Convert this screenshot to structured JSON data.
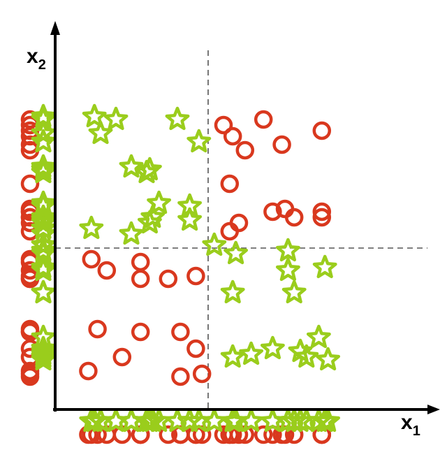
{
  "chart_data": {
    "type": "scatter",
    "xlabel": {
      "base": "x",
      "sub": "1"
    },
    "ylabel": {
      "base": "x",
      "sub": "2"
    },
    "xlim": [
      0,
      10
    ],
    "ylim": [
      0,
      10
    ],
    "dividers": {
      "x": 4.5,
      "y": 4.5
    },
    "colors": {
      "circle": "#d9381e",
      "star": "#9acd1c",
      "axis": "#000000",
      "divider": "#555555"
    },
    "series": [
      {
        "marker": "circle",
        "points": [
          [
            5.0,
            8.9
          ],
          [
            5.3,
            8.5
          ],
          [
            5.7,
            8.0
          ],
          [
            6.3,
            9.1
          ],
          [
            6.9,
            8.2
          ],
          [
            8.2,
            8.7
          ],
          [
            5.2,
            6.8
          ],
          [
            6.6,
            5.8
          ],
          [
            7.0,
            5.9
          ],
          [
            7.3,
            5.6
          ],
          [
            8.2,
            5.8
          ],
          [
            8.2,
            5.6
          ],
          [
            5.5,
            5.4
          ],
          [
            5.2,
            5.1
          ],
          [
            0.7,
            4.1
          ],
          [
            1.2,
            3.7
          ],
          [
            2.3,
            4.0
          ],
          [
            2.3,
            3.4
          ],
          [
            3.2,
            3.4
          ],
          [
            4.1,
            3.5
          ],
          [
            0.9,
            1.6
          ],
          [
            2.3,
            1.5
          ],
          [
            3.6,
            1.5
          ],
          [
            4.1,
            0.9
          ],
          [
            1.7,
            0.6
          ],
          [
            0.6,
            0.1
          ],
          [
            3.6,
            -0.1
          ],
          [
            4.3,
            0.0
          ]
        ]
      },
      {
        "marker": "star",
        "points": [
          [
            0.8,
            9.2
          ],
          [
            1.0,
            8.6
          ],
          [
            1.5,
            9.1
          ],
          [
            3.5,
            9.1
          ],
          [
            4.2,
            8.3
          ],
          [
            2.0,
            7.4
          ],
          [
            2.5,
            7.2
          ],
          [
            2.6,
            7.3
          ],
          [
            2.9,
            6.1
          ],
          [
            3.9,
            6.0
          ],
          [
            2.7,
            5.6
          ],
          [
            2.6,
            5.4
          ],
          [
            3.9,
            5.5
          ],
          [
            0.7,
            5.2
          ],
          [
            2.0,
            5.0
          ],
          [
            4.7,
            4.6
          ],
          [
            5.4,
            4.3
          ],
          [
            7.1,
            4.4
          ],
          [
            7.1,
            3.7
          ],
          [
            8.3,
            3.8
          ],
          [
            5.3,
            2.9
          ],
          [
            7.3,
            2.9
          ],
          [
            5.3,
            0.6
          ],
          [
            5.9,
            0.7
          ],
          [
            6.6,
            0.9
          ],
          [
            7.5,
            0.8
          ],
          [
            7.7,
            0.6
          ],
          [
            8.1,
            1.3
          ],
          [
            8.4,
            0.5
          ]
        ]
      }
    ]
  }
}
